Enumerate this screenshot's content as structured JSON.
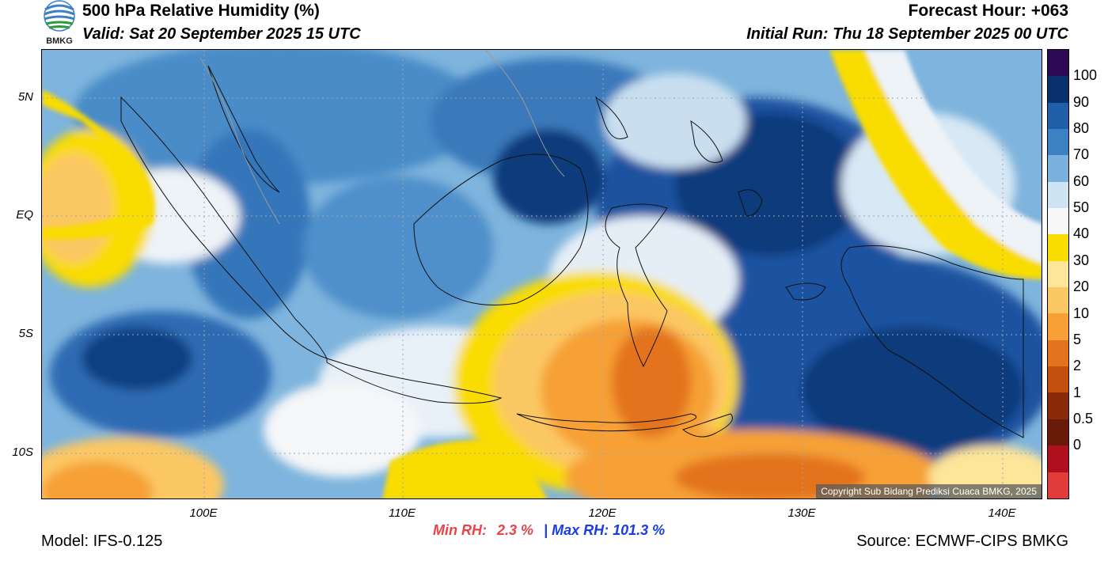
{
  "header": {
    "title": "500 hPa Relative Humidity (%)",
    "valid": "Valid: Sat 20 September 2025 15 UTC",
    "forecast_hour": "Forecast Hour: +063",
    "initial_run": "Initial Run: Thu 18 September 2025 00 UTC",
    "logo_text": "BMKG"
  },
  "map": {
    "lat_labels": [
      "5N",
      "EQ",
      "5S",
      "10S"
    ],
    "lon_labels": [
      "100E",
      "110E",
      "120E",
      "130E",
      "140E"
    ],
    "copyright": "Copyright Sub Bidang Prediksi Cuaca BMKG, 2025"
  },
  "colorbar": {
    "labels": [
      "100",
      "90",
      "80",
      "70",
      "60",
      "50",
      "40",
      "30",
      "20",
      "10",
      "5",
      "2",
      "1",
      "0.5",
      "0"
    ],
    "colors": [
      "#2e0a55",
      "#08306b",
      "#1f5ea8",
      "#3c82c2",
      "#79b2dc",
      "#cfe4f2",
      "#f7f7f7",
      "#f9dc00",
      "#fde59a",
      "#fbc763",
      "#f6a035",
      "#e3731c",
      "#c4500f",
      "#8b2a08",
      "#6a1a08",
      "#b0101e",
      "#e23b3b"
    ]
  },
  "footer": {
    "model": "Model: IFS-0.125",
    "source": "Source: ECMWF-CIPS BMKG",
    "min_rh_label": "Min RH:",
    "min_rh_value": "2.3 %",
    "separator": "|",
    "max_rh_label": "Max RH:",
    "max_rh_value": "101.3 %"
  }
}
